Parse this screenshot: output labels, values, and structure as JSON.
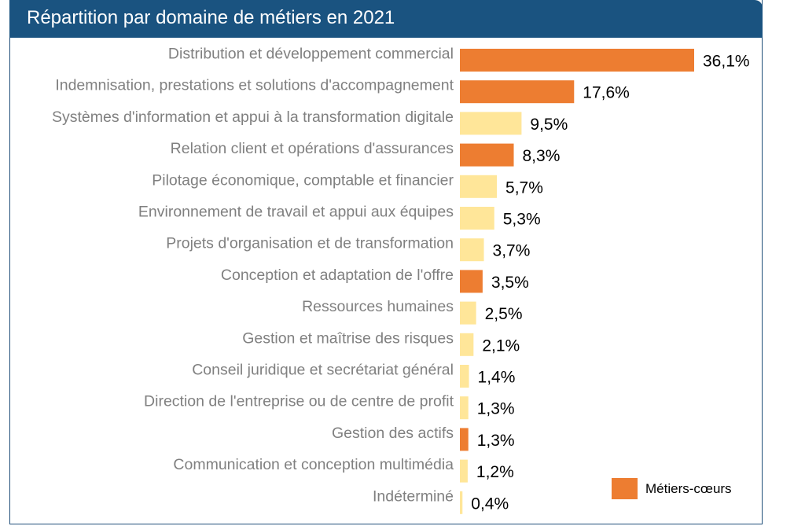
{
  "chart_data": {
    "type": "bar",
    "orientation": "horizontal",
    "title": "Répartition par domaine de métiers en 2021",
    "categories": [
      "Distribution et développement commercial",
      "Indemnisation, prestations et solutions d'accompagnement",
      "Systèmes d'information et appui à la transformation digitale",
      "Relation client et opérations d'assurances",
      "Pilotage économique, comptable et financier",
      "Environnement de travail et appui aux équipes",
      "Projets d'organisation et de transformation",
      "Conception et adaptation de l'offre",
      "Ressources humaines",
      "Gestion et maîtrise des risques",
      "Conseil juridique et secrétariat général",
      "Direction de l'entreprise ou de centre de profit",
      "Gestion des actifs",
      "Communication et conception multimédia",
      "Indéterminé"
    ],
    "values": [
      36.1,
      17.6,
      9.5,
      8.3,
      5.7,
      5.3,
      3.7,
      3.5,
      2.5,
      2.1,
      1.4,
      1.3,
      1.3,
      1.2,
      0.4
    ],
    "value_labels": [
      "36,1%",
      "17,6%",
      "9,5%",
      "8,3%",
      "5,7%",
      "5,3%",
      "3,7%",
      "3,5%",
      "2,5%",
      "2,1%",
      "1,4%",
      "1,3%",
      "1,3%",
      "1,2%",
      "0,4%"
    ],
    "core_trade": [
      true,
      true,
      false,
      true,
      false,
      false,
      false,
      true,
      false,
      false,
      false,
      false,
      true,
      false,
      false
    ],
    "legend": {
      "entries": [
        "Métiers-cœurs"
      ],
      "position": "bottom-right"
    },
    "colors": {
      "core": "#ed7d31",
      "other": "#ffe699"
    },
    "xlim": [
      0,
      36.1
    ],
    "grid": false
  },
  "colors": {
    "header_bg": "#1a5380",
    "border": "#1f4e79"
  }
}
